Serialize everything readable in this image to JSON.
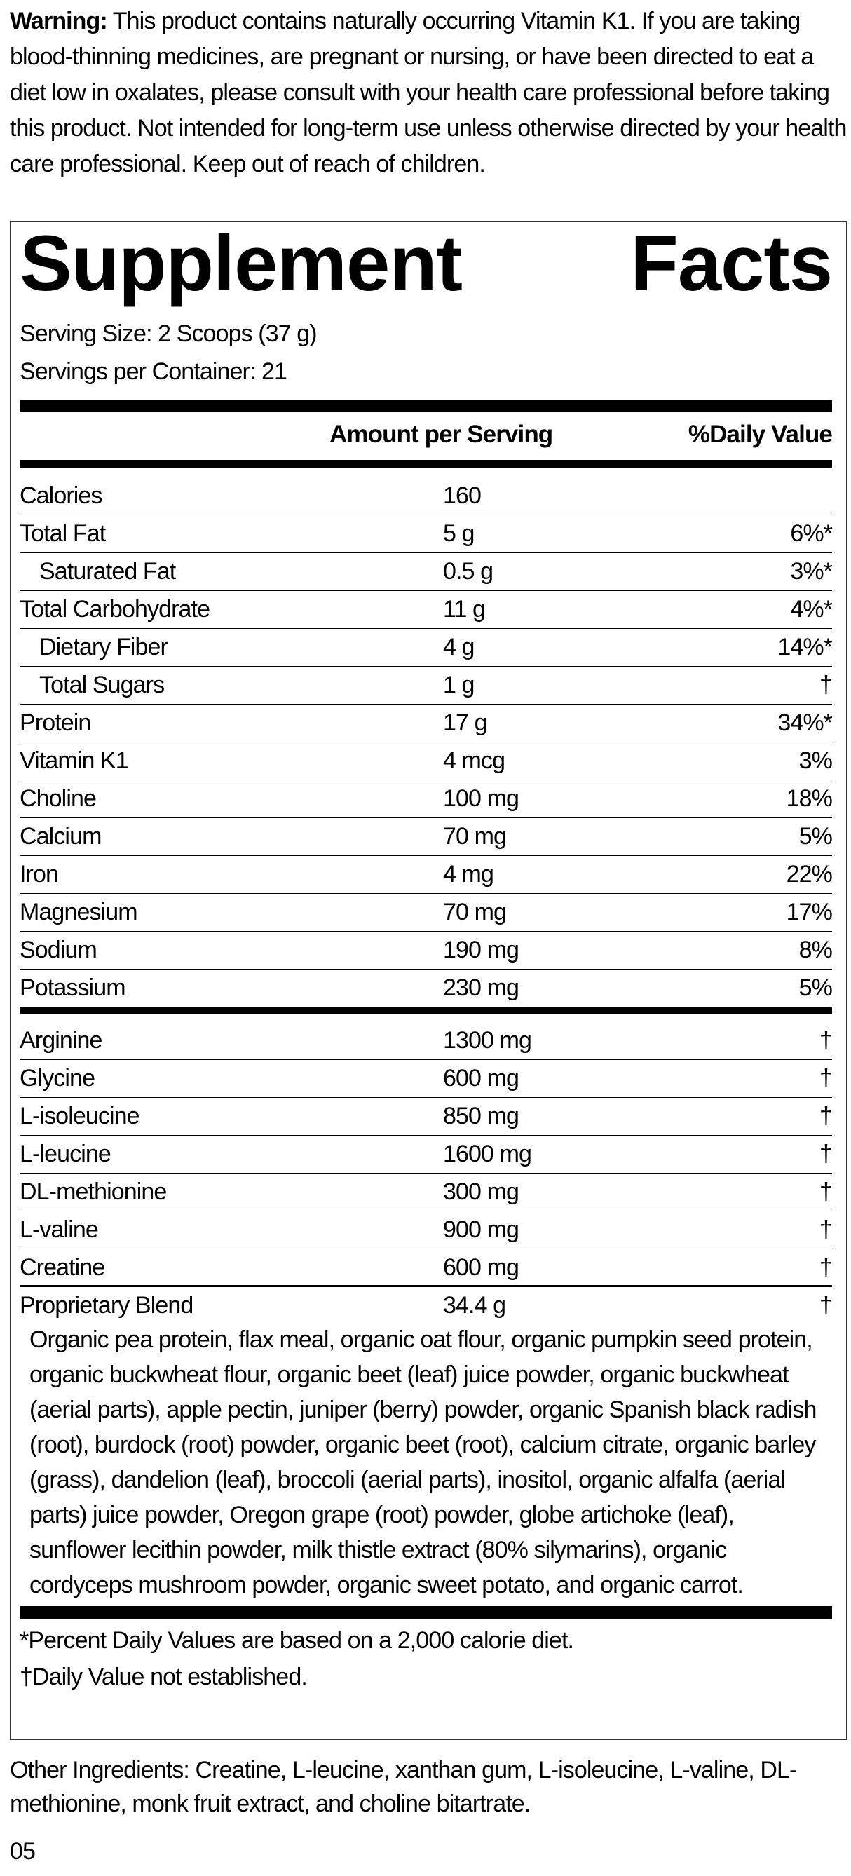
{
  "warning": {
    "label": "Warning:",
    "text": "This product contains naturally occurring Vitamin K1. If you are taking blood-thinning medicines, are pregnant or nursing, or have been directed to eat a diet low in oxalates, please consult with your health care professional before taking this product. Not intended for long-term use unless otherwise directed by your health care professional. Keep out of reach of children."
  },
  "facts": {
    "title_word1": "Supplement",
    "title_word2": "Facts",
    "serving_size": "Serving Size: 2 Scoops (37 g)",
    "servings_per_container": "Servings per Container: 21",
    "header": {
      "amount": "Amount per Serving",
      "dv": "%Daily Value"
    },
    "nutrients": [
      {
        "name": "Calories",
        "amount": "160",
        "dv": ""
      },
      {
        "name": "Total Fat",
        "amount": "5 g",
        "dv": "6%*"
      },
      {
        "name": "Saturated Fat",
        "amount": "0.5 g",
        "dv": "3%*",
        "indent": true
      },
      {
        "name": "Total Carbohydrate",
        "amount": "11 g",
        "dv": "4%*"
      },
      {
        "name": "Dietary Fiber",
        "amount": "4 g",
        "dv": "14%*",
        "indent": true
      },
      {
        "name": "Total Sugars",
        "amount": "1 g",
        "dv": "†",
        "indent": true
      },
      {
        "name": "Protein",
        "amount": "17 g",
        "dv": "34%*"
      },
      {
        "name": "Vitamin K1",
        "amount": "4 mcg",
        "dv": "3%"
      },
      {
        "name": "Choline",
        "amount": "100 mg",
        "dv": "18%"
      },
      {
        "name": "Calcium",
        "amount": "70 mg",
        "dv": "5%"
      },
      {
        "name": "Iron",
        "amount": "4 mg",
        "dv": "22%"
      },
      {
        "name": "Magnesium",
        "amount": "70 mg",
        "dv": "17%"
      },
      {
        "name": "Sodium",
        "amount": "190 mg",
        "dv": "8%"
      },
      {
        "name": "Potassium",
        "amount": "230 mg",
        "dv": "5%"
      }
    ],
    "amino_acids": [
      {
        "name": "Arginine",
        "amount": "1300 mg",
        "dv": "†"
      },
      {
        "name": "Glycine",
        "amount": "600 mg",
        "dv": "†"
      },
      {
        "name": "L-isoleucine",
        "amount": "850 mg",
        "dv": "†"
      },
      {
        "name": "L-leucine",
        "amount": "1600 mg",
        "dv": "†"
      },
      {
        "name": "DL-methionine",
        "amount": "300 mg",
        "dv": "†"
      },
      {
        "name": "L-valine",
        "amount": "900 mg",
        "dv": "†"
      },
      {
        "name": "Creatine",
        "amount": "600 mg",
        "dv": "†"
      }
    ],
    "blend": {
      "name": "Proprietary Blend",
      "amount": "34.4 g",
      "dv": "†",
      "ingredients": "Organic pea protein, flax meal, organic oat flour, organic pumpkin seed protein, organic buckwheat flour, organic beet (leaf) juice powder, organic buckwheat (aerial parts), apple pectin, juniper (berry) powder, organic Spanish black radish (root), burdock (root) powder, organic beet (root), calcium citrate, organic barley (grass), dandelion (leaf), broccoli (aerial parts), inositol, organic alfalfa (aerial parts) juice powder, Oregon grape (root) powder, globe artichoke (leaf), sunflower lecithin powder, milk thistle extract (80% silymarins), organic cordyceps mushroom powder, organic sweet potato, and organic carrot."
    },
    "footnote1": "*Percent Daily Values are based on a 2,000 calorie diet.",
    "footnote2": "†Daily Value not established."
  },
  "other_ingredients": "Other Ingredients: Creatine, L-leucine, xanthan gum, L-isoleucine, L-valine, DL-methionine, monk fruit extract, and choline bitartrate.",
  "code": "05"
}
